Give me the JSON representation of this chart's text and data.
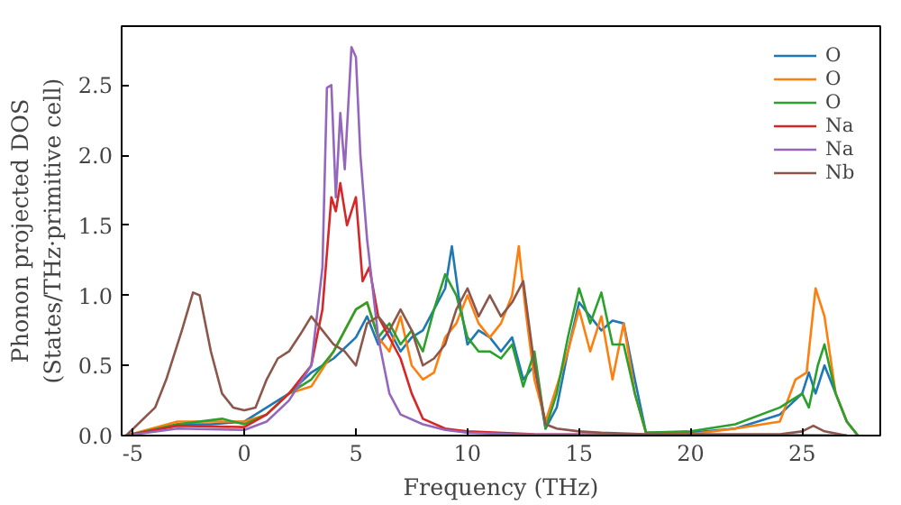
{
  "chart_data": {
    "type": "line",
    "xlabel": "Frequency (THz)",
    "ylabel": "Phonon projected DOS\n(States/THz·primitive cell)",
    "xlim": [
      -5.5,
      28.5
    ],
    "ylim": [
      0,
      2.92
    ],
    "xticks": [
      -5,
      0,
      5,
      10,
      15,
      20,
      25
    ],
    "yticks": [
      {
        "value": 0,
        "label": "0.0"
      },
      0.5,
      {
        "value": 1,
        "label": "1.0"
      },
      1.5,
      {
        "value": 2,
        "label": "2.0"
      },
      2.5
    ],
    "grid": false,
    "legend": "top right",
    "series": [
      {
        "name": "O",
        "color": "#1f77b4",
        "x": [
          -5.3,
          -3,
          -1.5,
          0,
          1,
          2,
          3,
          4,
          5,
          5.5,
          6,
          6.5,
          7,
          7.5,
          8,
          8.5,
          9,
          9.3,
          9.6,
          10,
          10.5,
          11,
          11.5,
          12,
          12.5,
          13,
          13.5,
          14,
          14.5,
          15,
          15.5,
          16,
          16.5,
          17,
          17.5,
          18,
          20,
          22,
          24,
          25,
          25.3,
          25.6,
          26,
          26.5,
          27,
          27.5
        ],
        "values": [
          0,
          0.08,
          0.08,
          0.1,
          0.2,
          0.3,
          0.45,
          0.55,
          0.7,
          0.85,
          0.65,
          0.75,
          0.6,
          0.7,
          0.75,
          0.9,
          1.05,
          1.35,
          1.0,
          0.65,
          0.75,
          0.7,
          0.6,
          0.7,
          0.4,
          0.5,
          0.05,
          0.2,
          0.6,
          0.95,
          0.85,
          0.75,
          0.82,
          0.8,
          0.4,
          0.02,
          0.02,
          0.05,
          0.15,
          0.3,
          0.45,
          0.3,
          0.5,
          0.3,
          0.1,
          0
        ]
      },
      {
        "name": "O",
        "color": "#ff7f0e",
        "x": [
          -5.3,
          -3,
          -1.5,
          0,
          1,
          2,
          3,
          4,
          5,
          5.5,
          6,
          6.5,
          7,
          7.5,
          8,
          8.5,
          9,
          9.5,
          10,
          10.5,
          11,
          11.5,
          12,
          12.3,
          12.6,
          13,
          13.5,
          14,
          14.5,
          15,
          15.5,
          16,
          16.5,
          17,
          17.5,
          18,
          20,
          22,
          24,
          24.7,
          25.2,
          25.6,
          26,
          26.5,
          27,
          27.5
        ],
        "values": [
          0,
          0.1,
          0.1,
          0.1,
          0.15,
          0.3,
          0.35,
          0.6,
          0.9,
          0.95,
          0.7,
          0.6,
          0.85,
          0.5,
          0.4,
          0.45,
          0.7,
          0.8,
          1.0,
          0.8,
          0.7,
          0.8,
          1.0,
          1.35,
          0.9,
          0.4,
          0.1,
          0.35,
          0.6,
          0.9,
          0.6,
          0.85,
          0.4,
          0.8,
          0.3,
          0.02,
          0.01,
          0.05,
          0.1,
          0.4,
          0.45,
          1.05,
          0.85,
          0.3,
          0.1,
          0
        ]
      },
      {
        "name": "O",
        "color": "#2ca02c",
        "x": [
          -5.3,
          -3,
          -1,
          0,
          1,
          2,
          3,
          4,
          5,
          5.5,
          6,
          6.5,
          7,
          7.5,
          8,
          8.5,
          9,
          9.5,
          10,
          10.5,
          11,
          11.5,
          12,
          12.5,
          13,
          13.5,
          14,
          14.5,
          15,
          15.5,
          16,
          16.5,
          17,
          17.5,
          18,
          20,
          22,
          24,
          25,
          25.3,
          25.7,
          26,
          26.5,
          27,
          27.5
        ],
        "values": [
          0,
          0.08,
          0.12,
          0.08,
          0.15,
          0.3,
          0.4,
          0.6,
          0.9,
          0.95,
          0.7,
          0.8,
          0.65,
          0.75,
          0.6,
          0.9,
          1.15,
          1.0,
          0.7,
          0.6,
          0.6,
          0.55,
          0.65,
          0.35,
          0.6,
          0.05,
          0.3,
          0.7,
          1.05,
          0.8,
          1.02,
          0.65,
          0.65,
          0.3,
          0.02,
          0.03,
          0.08,
          0.2,
          0.3,
          0.2,
          0.5,
          0.65,
          0.3,
          0.1,
          0
        ]
      },
      {
        "name": "Na",
        "color": "#d62728",
        "x": [
          -5.3,
          -3,
          0,
          1,
          2,
          3,
          3.5,
          3.9,
          4.1,
          4.3,
          4.6,
          5,
          5.3,
          5.6,
          6,
          6.5,
          7,
          7.5,
          8,
          9,
          10,
          13,
          27
        ],
        "values": [
          0,
          0.07,
          0.06,
          0.15,
          0.3,
          0.5,
          0.9,
          1.7,
          1.6,
          1.8,
          1.5,
          1.7,
          1.1,
          1.2,
          0.85,
          0.7,
          0.55,
          0.3,
          0.12,
          0.05,
          0.03,
          0.01,
          0
        ]
      },
      {
        "name": "Na",
        "color": "#9467bd",
        "x": [
          -5.3,
          -3,
          0,
          1,
          2,
          3,
          3.5,
          3.7,
          3.9,
          4.1,
          4.3,
          4.5,
          4.8,
          5.0,
          5.2,
          5.5,
          6,
          6.5,
          7,
          8,
          9,
          10,
          12,
          27
        ],
        "values": [
          0,
          0.05,
          0.04,
          0.1,
          0.25,
          0.5,
          1.2,
          2.48,
          2.5,
          1.7,
          2.3,
          1.9,
          2.77,
          2.7,
          2.0,
          1.4,
          0.7,
          0.3,
          0.15,
          0.08,
          0.04,
          0.02,
          0.01,
          0
        ]
      },
      {
        "name": "Nb",
        "color": "#8c564b",
        "x": [
          -5.3,
          -4,
          -3.5,
          -2.8,
          -2.3,
          -2,
          -1.5,
          -1,
          -0.5,
          0,
          0.5,
          1,
          1.5,
          2,
          2.5,
          3,
          3.5,
          4,
          4.5,
          5,
          5.5,
          6,
          6.5,
          7,
          7.5,
          8,
          8.5,
          9,
          9.5,
          10,
          10.5,
          11,
          11.5,
          12,
          12.5,
          13,
          13.5,
          14,
          15,
          16,
          18,
          24,
          25,
          25.5,
          26,
          27
        ],
        "values": [
          0,
          0.2,
          0.4,
          0.75,
          1.02,
          1.0,
          0.6,
          0.3,
          0.2,
          0.18,
          0.2,
          0.4,
          0.55,
          0.6,
          0.72,
          0.85,
          0.75,
          0.65,
          0.6,
          0.5,
          0.8,
          0.85,
          0.75,
          0.9,
          0.75,
          0.5,
          0.55,
          0.65,
          0.9,
          1.05,
          0.85,
          1.0,
          0.85,
          0.95,
          1.1,
          0.5,
          0.08,
          0.05,
          0.03,
          0.02,
          0.01,
          0.01,
          0.03,
          0.07,
          0.03,
          0
        ]
      }
    ]
  }
}
